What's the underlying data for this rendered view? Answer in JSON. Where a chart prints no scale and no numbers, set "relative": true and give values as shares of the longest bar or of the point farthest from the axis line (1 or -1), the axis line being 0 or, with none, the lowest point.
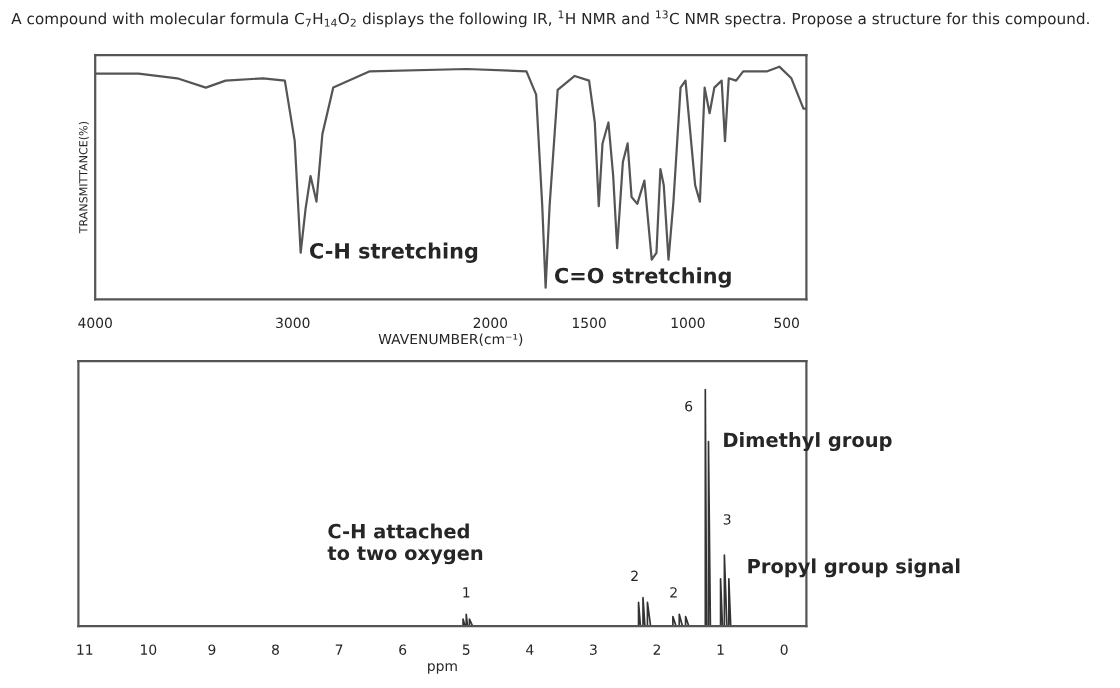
{
  "chart_data": [
    {
      "type": "line",
      "title": "A compound with molecular formula C$_{7}$H$_{14}$O$_{2}$ displays the following IR, $^{1}$H NMR and $^{13}$C NMR spectra. Propose a structure for this compound.",
      "xlabel": "WAVENUMBER(cm⁻¹)",
      "ylabel": "TRANSMITTANCE(%)",
      "relative": true,
      "xlim": [
        4000,
        400
      ],
      "xticks": [
        4000,
        3000,
        2000,
        1500,
        1000,
        500
      ],
      "grid": false,
      "legend": false,
      "marker": "none",
      "line_style": "solid",
      "series": [
        {
          "color": "#555555",
          "x": [
            4000,
            3780,
            3585,
            3440,
            3340,
            3150,
            3040,
            2990,
            2960,
            2935,
            2910,
            2880,
            2850,
            2795,
            2610,
            2120,
            1817,
            1768,
            1737,
            1720,
            1700,
            1659,
            1573,
            1500,
            1471,
            1451,
            1432,
            1402,
            1378,
            1358,
            1329,
            1305,
            1285,
            1256,
            1220,
            1183,
            1159,
            1139,
            1122,
            1098,
            1073,
            1037,
            1012,
            963,
            939,
            915,
            890,
            866,
            829,
            812,
            793,
            756,
            720,
            598,
            537,
            476,
            415,
            400
          ],
          "values": [
            0.97,
            0.97,
            0.95,
            0.91,
            0.94,
            0.95,
            0.94,
            0.68,
            0.2,
            0.39,
            0.53,
            0.42,
            0.71,
            0.91,
            0.98,
            0.99,
            0.98,
            0.88,
            0.4,
            0.05,
            0.4,
            0.9,
            0.96,
            0.94,
            0.76,
            0.4,
            0.67,
            0.76,
            0.53,
            0.22,
            0.59,
            0.67,
            0.44,
            0.41,
            0.51,
            0.17,
            0.2,
            0.56,
            0.49,
            0.17,
            0.42,
            0.91,
            0.94,
            0.49,
            0.42,
            0.91,
            0.8,
            0.91,
            0.94,
            0.68,
            0.95,
            0.94,
            0.98,
            0.98,
            1.0,
            0.95,
            0.82,
            0.82
          ]
        }
      ],
      "annotations": [
        {
          "text": "C-H stretching",
          "x": 2960,
          "y": 0.2
        },
        {
          "text": "C=O stretching",
          "x": 1720,
          "y": 0.05
        }
      ]
    },
    {
      "type": "line",
      "xlabel": "ppm",
      "relative": true,
      "xlim": [
        11.1,
        -0.35
      ],
      "xticks": [
        11,
        10,
        9,
        8,
        7,
        6,
        5,
        4,
        3,
        2,
        1,
        0
      ],
      "grid": false,
      "legend": false,
      "marker": "none",
      "line_style": "solid",
      "series": [
        {
          "color": "#333333",
          "x": [
            11.1,
            5.1,
            5.05,
            5.05,
            5.02,
            5.0,
            5.0,
            4.98,
            4.95,
            4.95,
            4.9,
            2.35,
            2.29,
            2.29,
            2.26,
            2.22,
            2.22,
            2.19,
            2.15,
            2.15,
            2.1,
            1.85,
            1.75,
            1.75,
            1.7,
            1.65,
            1.65,
            1.6,
            1.55,
            1.55,
            1.5,
            1.26,
            1.24,
            1.24,
            1.22,
            1.19,
            1.19,
            1.16,
            1.0,
            1.0,
            0.97,
            0.94,
            0.94,
            0.9,
            0.87,
            0.87,
            0.84,
            -0.35
          ],
          "values": [
            0,
            0,
            0,
            0.03,
            0,
            0,
            0.05,
            0,
            0,
            0.03,
            0,
            0,
            0,
            0.1,
            0,
            0,
            0.12,
            0,
            0,
            0.1,
            0,
            0,
            0,
            0.04,
            0,
            0,
            0.05,
            0,
            0,
            0.04,
            0,
            0,
            0,
            1.0,
            0,
            0,
            0.78,
            0,
            0,
            0.2,
            0,
            0,
            0.3,
            0,
            0,
            0.2,
            0,
            0
          ]
        }
      ],
      "annotations": [
        {
          "text": "1",
          "x": 5.0,
          "y": 0.05
        },
        {
          "text": "2",
          "x": 2.22,
          "y": 0.12
        },
        {
          "text": "2",
          "x": 1.65,
          "y": 0.05
        },
        {
          "text": "6",
          "x": 1.24,
          "y": 1.0
        },
        {
          "text": "3",
          "x": 0.94,
          "y": 0.3
        },
        {
          "text": "C-H attached\nto two oxygen",
          "x": 5.0,
          "y": 0.05
        },
        {
          "text": "Dimethyl group",
          "x": 1.19,
          "y": 0.78
        },
        {
          "text": "Propyl group signal",
          "x": 0.94,
          "y": 0.3
        }
      ]
    }
  ]
}
